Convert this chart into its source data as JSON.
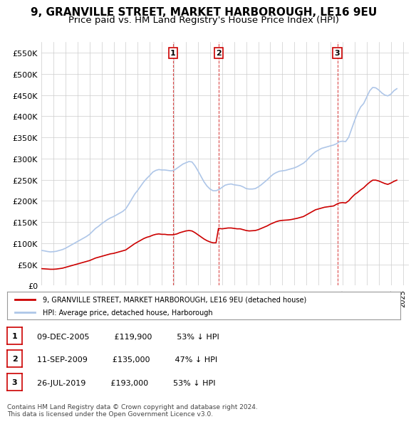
{
  "title": "9, GRANVILLE STREET, MARKET HARBOROUGH, LE16 9EU",
  "subtitle": "Price paid vs. HM Land Registry's House Price Index (HPI)",
  "title_fontsize": 11,
  "subtitle_fontsize": 9.5,
  "ylabel_ticks": [
    "£0",
    "£50K",
    "£100K",
    "£150K",
    "£200K",
    "£250K",
    "£300K",
    "£350K",
    "£400K",
    "£450K",
    "£500K",
    "£550K"
  ],
  "ytick_values": [
    0,
    50000,
    100000,
    150000,
    200000,
    250000,
    300000,
    350000,
    400000,
    450000,
    500000,
    550000
  ],
  "ylim": [
    0,
    575000
  ],
  "xlim_start": 1995.0,
  "xlim_end": 2025.5,
  "bg_color": "#ffffff",
  "grid_color": "#cccccc",
  "hpi_color": "#aec6e8",
  "price_color": "#cc0000",
  "sale_points": [
    {
      "year": 2005.92,
      "price": 119900,
      "label": "1"
    },
    {
      "year": 2009.7,
      "price": 135000,
      "label": "2"
    },
    {
      "year": 2019.56,
      "price": 193000,
      "label": "3"
    }
  ],
  "legend_items": [
    {
      "label": "9, GRANVILLE STREET, MARKET HARBOROUGH, LE16 9EU (detached house)",
      "color": "#cc0000"
    },
    {
      "label": "HPI: Average price, detached house, Harborough",
      "color": "#aec6e8"
    }
  ],
  "table_rows": [
    {
      "num": "1",
      "date": "09-DEC-2005",
      "price": "£119,900",
      "change": "53% ↓ HPI"
    },
    {
      "num": "2",
      "date": "11-SEP-2009",
      "price": "£135,000",
      "change": "47% ↓ HPI"
    },
    {
      "num": "3",
      "date": "26-JUL-2019",
      "price": "£193,000",
      "change": "53% ↓ HPI"
    }
  ],
  "footer": "Contains HM Land Registry data © Crown copyright and database right 2024.\nThis data is licensed under the Open Government Licence v3.0.",
  "hpi_data_x": [
    1995.0,
    1995.25,
    1995.5,
    1995.75,
    1996.0,
    1996.25,
    1996.5,
    1996.75,
    1997.0,
    1997.25,
    1997.5,
    1997.75,
    1998.0,
    1998.25,
    1998.5,
    1998.75,
    1999.0,
    1999.25,
    1999.5,
    1999.75,
    2000.0,
    2000.25,
    2000.5,
    2000.75,
    2001.0,
    2001.25,
    2001.5,
    2001.75,
    2002.0,
    2002.25,
    2002.5,
    2002.75,
    2003.0,
    2003.25,
    2003.5,
    2003.75,
    2004.0,
    2004.25,
    2004.5,
    2004.75,
    2005.0,
    2005.25,
    2005.5,
    2005.75,
    2006.0,
    2006.25,
    2006.5,
    2006.75,
    2007.0,
    2007.25,
    2007.5,
    2007.75,
    2008.0,
    2008.25,
    2008.5,
    2008.75,
    2009.0,
    2009.25,
    2009.5,
    2009.75,
    2010.0,
    2010.25,
    2010.5,
    2010.75,
    2011.0,
    2011.25,
    2011.5,
    2011.75,
    2012.0,
    2012.25,
    2012.5,
    2012.75,
    2013.0,
    2013.25,
    2013.5,
    2013.75,
    2014.0,
    2014.25,
    2014.5,
    2014.75,
    2015.0,
    2015.25,
    2015.5,
    2015.75,
    2016.0,
    2016.25,
    2016.5,
    2016.75,
    2017.0,
    2017.25,
    2017.5,
    2017.75,
    2018.0,
    2018.25,
    2018.5,
    2018.75,
    2019.0,
    2019.25,
    2019.5,
    2019.75,
    2020.0,
    2020.25,
    2020.5,
    2020.75,
    2021.0,
    2021.25,
    2021.5,
    2021.75,
    2022.0,
    2022.25,
    2022.5,
    2022.75,
    2023.0,
    2023.25,
    2023.5,
    2023.75,
    2024.0,
    2024.25,
    2024.5
  ],
  "hpi_data_y": [
    83000,
    82000,
    80500,
    79500,
    80000,
    81000,
    83000,
    85000,
    88000,
    92000,
    96000,
    100000,
    104000,
    108000,
    112000,
    116000,
    121000,
    128000,
    135000,
    140000,
    146000,
    151000,
    156000,
    160000,
    163000,
    167000,
    171000,
    175000,
    181000,
    192000,
    204000,
    216000,
    225000,
    235000,
    245000,
    253000,
    260000,
    268000,
    272000,
    274000,
    273000,
    273000,
    272000,
    271000,
    272000,
    277000,
    282000,
    287000,
    290000,
    293000,
    292000,
    283000,
    271000,
    258000,
    245000,
    235000,
    228000,
    224000,
    224000,
    227000,
    232000,
    237000,
    239000,
    240000,
    238000,
    237000,
    236000,
    233000,
    229000,
    228000,
    228000,
    229000,
    233000,
    238000,
    244000,
    250000,
    257000,
    263000,
    267000,
    270000,
    271000,
    272000,
    274000,
    276000,
    278000,
    281000,
    285000,
    289000,
    295000,
    303000,
    310000,
    316000,
    320000,
    324000,
    326000,
    328000,
    330000,
    332000,
    335000,
    340000,
    341000,
    340000,
    350000,
    370000,
    390000,
    408000,
    422000,
    430000,
    445000,
    460000,
    468000,
    467000,
    462000,
    455000,
    450000,
    448000,
    452000,
    460000,
    465000
  ],
  "price_data_x": [
    1995.0,
    1995.25,
    1995.5,
    1995.75,
    1996.0,
    1996.25,
    1996.5,
    1996.75,
    1997.0,
    1997.25,
    1997.5,
    1997.75,
    1998.0,
    1998.25,
    1998.5,
    1998.75,
    1999.0,
    1999.25,
    1999.5,
    1999.75,
    2000.0,
    2000.25,
    2000.5,
    2000.75,
    2001.0,
    2001.25,
    2001.5,
    2001.75,
    2002.0,
    2002.25,
    2002.5,
    2002.75,
    2003.0,
    2003.25,
    2003.5,
    2003.75,
    2004.0,
    2004.25,
    2004.5,
    2004.75,
    2005.0,
    2005.25,
    2005.5,
    2005.75,
    2005.92,
    2006.25,
    2006.5,
    2006.75,
    2007.0,
    2007.25,
    2007.5,
    2007.75,
    2008.0,
    2008.25,
    2008.5,
    2008.75,
    2009.0,
    2009.25,
    2009.5,
    2009.7,
    2010.0,
    2010.25,
    2010.5,
    2010.75,
    2011.0,
    2011.25,
    2011.5,
    2011.75,
    2012.0,
    2012.25,
    2012.5,
    2012.75,
    2013.0,
    2013.25,
    2013.5,
    2013.75,
    2014.0,
    2014.25,
    2014.5,
    2014.75,
    2015.0,
    2015.25,
    2015.5,
    2015.75,
    2016.0,
    2016.25,
    2016.5,
    2016.75,
    2017.0,
    2017.25,
    2017.5,
    2017.75,
    2018.0,
    2018.25,
    2018.5,
    2018.75,
    2019.0,
    2019.25,
    2019.56,
    2019.75,
    2020.0,
    2020.25,
    2020.5,
    2020.75,
    2021.0,
    2021.25,
    2021.5,
    2021.75,
    2022.0,
    2022.25,
    2022.5,
    2022.75,
    2023.0,
    2023.25,
    2023.5,
    2023.75,
    2024.0,
    2024.25,
    2024.5
  ],
  "price_data_y": [
    40000,
    39500,
    39000,
    38500,
    38500,
    39000,
    40000,
    41000,
    43000,
    45000,
    47000,
    49000,
    51000,
    53000,
    55000,
    57000,
    59000,
    62000,
    65000,
    67000,
    69000,
    71000,
    73000,
    75000,
    76000,
    78000,
    80000,
    82000,
    84000,
    89000,
    94000,
    99000,
    103000,
    107000,
    111000,
    114000,
    116000,
    119000,
    121000,
    122000,
    121000,
    121000,
    120000,
    120000,
    119900,
    122000,
    125000,
    127000,
    129000,
    130000,
    129000,
    125000,
    120000,
    115000,
    110000,
    106000,
    103000,
    101000,
    101000,
    135000,
    134000,
    135000,
    136000,
    136000,
    135000,
    134000,
    134000,
    132000,
    130000,
    129000,
    129500,
    130000,
    132000,
    135000,
    138000,
    141000,
    145000,
    148000,
    151000,
    153000,
    154000,
    154500,
    155000,
    156000,
    157500,
    159000,
    161000,
    163000,
    167000,
    171000,
    175000,
    179000,
    181000,
    183000,
    185000,
    186000,
    187000,
    188000,
    193000,
    195000,
    196000,
    195000,
    200000,
    208000,
    215000,
    220000,
    226000,
    231000,
    238000,
    244000,
    249000,
    249000,
    247000,
    244000,
    241000,
    239000,
    242000,
    246000,
    249000
  ]
}
